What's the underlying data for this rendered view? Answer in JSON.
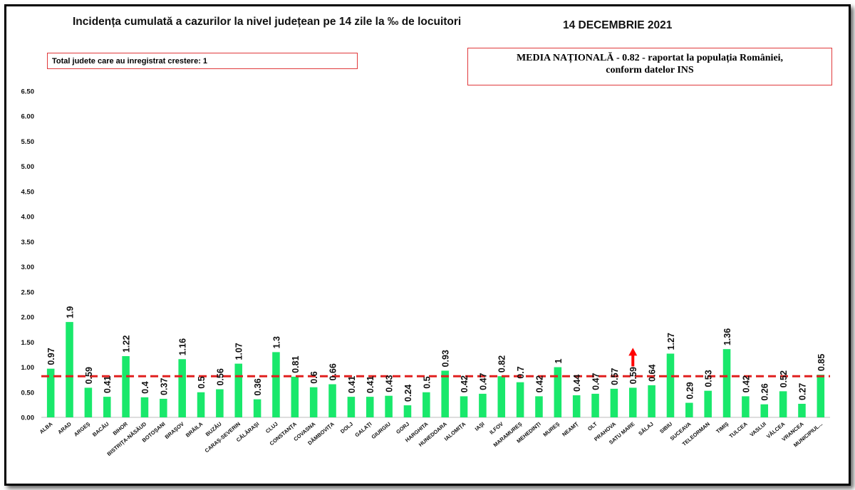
{
  "header": {
    "title": "Incidența cumulată a cazurilor la nivel județean pe 14 zile la ‰ de locuitori",
    "date": "14 DECEMBRIE 2021"
  },
  "notes": {
    "total_increase": "Total judete care au inregistrat crestere: 1",
    "media_line1": "MEDIA NAȚIONALĂ  - 0.82 -  raportat la populația  României,",
    "media_line2": "conform datelor INS"
  },
  "colors": {
    "bar": "#19e86b",
    "mean_line": "#e0201f",
    "arrow": "#ff0000",
    "box_border": "#e0393b"
  },
  "chart_data": {
    "type": "bar",
    "categories": [
      "ALBA",
      "ARAD",
      "ARGEȘ",
      "BACĂU",
      "BIHOR",
      "BISTRIȚA-NĂSĂUD",
      "BOTOȘANI",
      "BRAȘOV",
      "BRĂILA",
      "BUZĂU",
      "CARAȘ-SEVERIN",
      "CĂLĂRAȘI",
      "CLUJ",
      "CONSTANȚA",
      "COVASNA",
      "DÂMBOVIȚA",
      "DOLJ",
      "GALAȚI",
      "GIURGIU",
      "GORJ",
      "HARGHITA",
      "HUNEDOARA",
      "IALOMIȚA",
      "IAȘI",
      "ILFOV",
      "MARAMUREȘ",
      "MEHEDINȚI",
      "MUREȘ",
      "NEAMȚ",
      "OLT",
      "PRAHOVA",
      "SATU MARE",
      "SĂLAJ",
      "SIBIU",
      "SUCEAVA",
      "TELEORMAN",
      "TIMIȘ",
      "TULCEA",
      "VASLUI",
      "VÂLCEA",
      "VRANCEA",
      "MUNICIPIUL..."
    ],
    "values": [
      0.97,
      1.9,
      0.59,
      0.41,
      1.22,
      0.4,
      0.37,
      1.16,
      0.5,
      0.56,
      1.07,
      0.36,
      1.3,
      0.81,
      0.6,
      0.66,
      0.41,
      0.41,
      0.43,
      0.24,
      0.5,
      0.93,
      0.42,
      0.47,
      0.82,
      0.7,
      0.42,
      1,
      0.44,
      0.47,
      0.57,
      0.59,
      0.64,
      1.27,
      0.29,
      0.53,
      1.36,
      0.42,
      0.26,
      0.52,
      0.27,
      0.85
    ],
    "data_labels": [
      "0.97",
      "1.9",
      "0.59",
      "0.41",
      "1.22",
      "0.4",
      "0.37",
      "1.16",
      "0.5",
      "0.56",
      "1.07",
      "0.36",
      "1.3",
      "0.81",
      "0.6",
      "0.66",
      "0.41",
      "0.41",
      "0.43",
      "0.24",
      "0.5",
      "0.93",
      "0.42",
      "0.47",
      "0.82",
      "0.7",
      "0.42",
      "1",
      "0.44",
      "0.47",
      "0.57",
      "0.59",
      "0.64",
      "1.27",
      "0.29",
      "0.53",
      "1.36",
      "0.42",
      "0.26",
      "0.52",
      "0.27",
      "0.85"
    ],
    "increase_marker_category": "SATU MARE",
    "reference_line": 0.82,
    "ylim": [
      0,
      6.5
    ],
    "yticks": [
      "0.00",
      "0.50",
      "1.00",
      "1.50",
      "2.00",
      "2.50",
      "3.00",
      "3.50",
      "4.00",
      "4.50",
      "5.00",
      "5.50",
      "6.00",
      "6.50"
    ],
    "grid": false,
    "legend": "none"
  }
}
